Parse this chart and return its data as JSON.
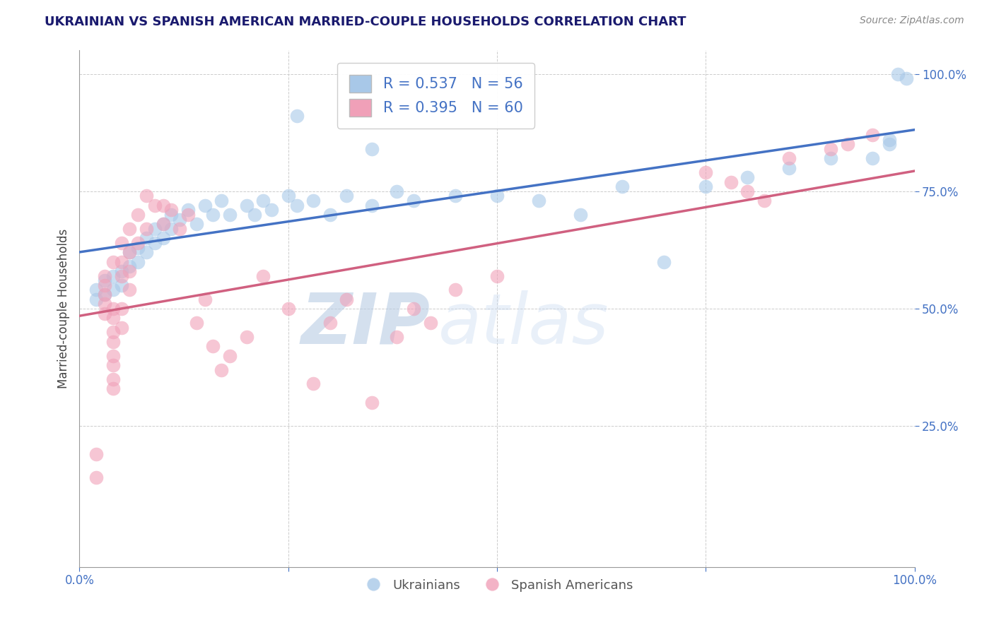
{
  "title": "UKRAINIAN VS SPANISH AMERICAN MARRIED-COUPLE HOUSEHOLDS CORRELATION CHART",
  "source": "Source: ZipAtlas.com",
  "ylabel": "Married-couple Households",
  "xlim": [
    0,
    1
  ],
  "ylim": [
    -0.05,
    1.05
  ],
  "x_ticks": [
    0,
    0.25,
    0.5,
    0.75,
    1.0
  ],
  "x_tick_labels": [
    "0.0%",
    "",
    "",
    "",
    "100.0%"
  ],
  "y_ticks": [
    0.25,
    0.5,
    0.75,
    1.0
  ],
  "y_tick_labels": [
    "25.0%",
    "50.0%",
    "75.0%",
    "100.0%"
  ],
  "legend_r1": "R = 0.537",
  "legend_n1": "N = 56",
  "legend_r2": "R = 0.395",
  "legend_n2": "N = 60",
  "blue_color": "#a8c8e8",
  "pink_color": "#f0a0b8",
  "line_blue": "#4472c4",
  "line_pink": "#d06080",
  "blue_scatter": [
    [
      0.02,
      0.54
    ],
    [
      0.02,
      0.52
    ],
    [
      0.03,
      0.56
    ],
    [
      0.03,
      0.53
    ],
    [
      0.04,
      0.57
    ],
    [
      0.04,
      0.54
    ],
    [
      0.05,
      0.58
    ],
    [
      0.05,
      0.55
    ],
    [
      0.06,
      0.62
    ],
    [
      0.06,
      0.59
    ],
    [
      0.07,
      0.63
    ],
    [
      0.07,
      0.6
    ],
    [
      0.08,
      0.65
    ],
    [
      0.08,
      0.62
    ],
    [
      0.09,
      0.67
    ],
    [
      0.09,
      0.64
    ],
    [
      0.1,
      0.68
    ],
    [
      0.1,
      0.65
    ],
    [
      0.11,
      0.7
    ],
    [
      0.11,
      0.67
    ],
    [
      0.12,
      0.69
    ],
    [
      0.13,
      0.71
    ],
    [
      0.14,
      0.68
    ],
    [
      0.15,
      0.72
    ],
    [
      0.16,
      0.7
    ],
    [
      0.17,
      0.73
    ],
    [
      0.18,
      0.7
    ],
    [
      0.2,
      0.72
    ],
    [
      0.21,
      0.7
    ],
    [
      0.22,
      0.73
    ],
    [
      0.23,
      0.71
    ],
    [
      0.25,
      0.74
    ],
    [
      0.26,
      0.72
    ],
    [
      0.28,
      0.73
    ],
    [
      0.3,
      0.7
    ],
    [
      0.32,
      0.74
    ],
    [
      0.35,
      0.72
    ],
    [
      0.38,
      0.75
    ],
    [
      0.4,
      0.73
    ],
    [
      0.45,
      0.74
    ],
    [
      0.5,
      0.74
    ],
    [
      0.55,
      0.73
    ],
    [
      0.6,
      0.7
    ],
    [
      0.65,
      0.76
    ],
    [
      0.7,
      0.6
    ],
    [
      0.75,
      0.76
    ],
    [
      0.8,
      0.78
    ],
    [
      0.85,
      0.8
    ],
    [
      0.9,
      0.82
    ],
    [
      0.95,
      0.82
    ],
    [
      0.97,
      0.85
    ],
    [
      0.97,
      0.86
    ],
    [
      0.98,
      1.0
    ],
    [
      0.99,
      0.99
    ],
    [
      0.26,
      0.91
    ],
    [
      0.35,
      0.84
    ]
  ],
  "pink_scatter": [
    [
      0.02,
      0.14
    ],
    [
      0.02,
      0.19
    ],
    [
      0.03,
      0.49
    ],
    [
      0.03,
      0.51
    ],
    [
      0.03,
      0.53
    ],
    [
      0.03,
      0.55
    ],
    [
      0.03,
      0.57
    ],
    [
      0.04,
      0.6
    ],
    [
      0.04,
      0.5
    ],
    [
      0.04,
      0.48
    ],
    [
      0.04,
      0.45
    ],
    [
      0.04,
      0.43
    ],
    [
      0.04,
      0.4
    ],
    [
      0.04,
      0.38
    ],
    [
      0.04,
      0.35
    ],
    [
      0.04,
      0.33
    ],
    [
      0.05,
      0.64
    ],
    [
      0.05,
      0.6
    ],
    [
      0.05,
      0.57
    ],
    [
      0.05,
      0.5
    ],
    [
      0.05,
      0.46
    ],
    [
      0.06,
      0.67
    ],
    [
      0.06,
      0.62
    ],
    [
      0.06,
      0.58
    ],
    [
      0.06,
      0.54
    ],
    [
      0.07,
      0.7
    ],
    [
      0.07,
      0.64
    ],
    [
      0.08,
      0.74
    ],
    [
      0.08,
      0.67
    ],
    [
      0.09,
      0.72
    ],
    [
      0.1,
      0.72
    ],
    [
      0.1,
      0.68
    ],
    [
      0.11,
      0.71
    ],
    [
      0.12,
      0.67
    ],
    [
      0.13,
      0.7
    ],
    [
      0.14,
      0.47
    ],
    [
      0.15,
      0.52
    ],
    [
      0.16,
      0.42
    ],
    [
      0.17,
      0.37
    ],
    [
      0.18,
      0.4
    ],
    [
      0.2,
      0.44
    ],
    [
      0.22,
      0.57
    ],
    [
      0.25,
      0.5
    ],
    [
      0.28,
      0.34
    ],
    [
      0.3,
      0.47
    ],
    [
      0.32,
      0.52
    ],
    [
      0.35,
      0.3
    ],
    [
      0.38,
      0.44
    ],
    [
      0.4,
      0.5
    ],
    [
      0.42,
      0.47
    ],
    [
      0.45,
      0.54
    ],
    [
      0.5,
      0.57
    ],
    [
      0.75,
      0.79
    ],
    [
      0.78,
      0.77
    ],
    [
      0.8,
      0.75
    ],
    [
      0.82,
      0.73
    ],
    [
      0.85,
      0.82
    ],
    [
      0.9,
      0.84
    ],
    [
      0.92,
      0.85
    ],
    [
      0.95,
      0.87
    ]
  ],
  "watermark_zip": "ZIP",
  "watermark_atlas": "atlas",
  "background_color": "#ffffff",
  "grid_color": "#cccccc",
  "title_color": "#1a1a6e",
  "axis_label_color": "#444444",
  "tick_color": "#4472c4",
  "title_fontsize": 13,
  "source_fontsize": 10,
  "tick_fontsize": 12,
  "ylabel_fontsize": 12,
  "legend_fontsize": 15
}
